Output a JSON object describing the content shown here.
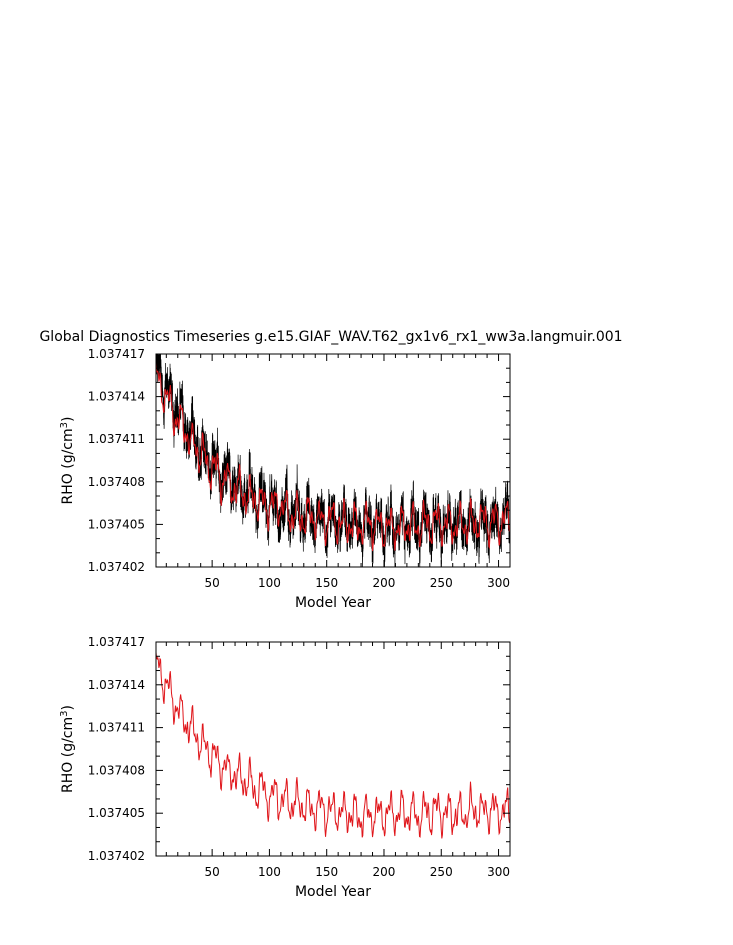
{
  "title": "Global Diagnostics Timeseries g.e15.GIAF_WAV.T62_gx1v6_rx1_ww3a.langmuir.001",
  "chart_data": [
    {
      "type": "line",
      "xlabel": "Model Year",
      "ylabel_main": "RHO (g/cm",
      "ylabel_sup": "3",
      "ylabel_tail": ")",
      "xlim": [
        1,
        310
      ],
      "ylim": [
        1.037402,
        1.037417
      ],
      "xticks": [
        50,
        100,
        150,
        200,
        250,
        300
      ],
      "yticks": [
        1.037402,
        1.037405,
        1.037408,
        1.037411,
        1.037414,
        1.037417
      ],
      "yticklabels": [
        "1.037402",
        "1.037405",
        "1.037408",
        "1.037411",
        "1.037414",
        "1.037417"
      ],
      "series": [
        {
          "style": "monthly",
          "color": "#000000",
          "start": 1.0374165,
          "floor": 1.0374045,
          "drift_end": 1.0374052,
          "noise": 1.3e-06
        },
        {
          "style": "annual",
          "color": "#e0161b",
          "start": 1.0374158,
          "floor": 1.0374045,
          "drift_end": 1.0374052,
          "noise": 6e-07
        }
      ]
    },
    {
      "type": "line",
      "xlabel": "Model Year",
      "ylabel_main": "RHO (g/cm",
      "ylabel_sup": "3",
      "ylabel_tail": ")",
      "xlim": [
        1,
        310
      ],
      "ylim": [
        1.037402,
        1.037417
      ],
      "xticks": [
        50,
        100,
        150,
        200,
        250,
        300
      ],
      "yticks": [
        1.037402,
        1.037405,
        1.037408,
        1.037411,
        1.037414,
        1.037417
      ],
      "yticklabels": [
        "1.037402",
        "1.037405",
        "1.037408",
        "1.037411",
        "1.037414",
        "1.037417"
      ],
      "series": [
        {
          "style": "annual",
          "color": "#e0161b",
          "start": 1.0374158,
          "floor": 1.0374045,
          "drift_end": 1.0374052,
          "noise": 6e-07
        }
      ]
    }
  ]
}
